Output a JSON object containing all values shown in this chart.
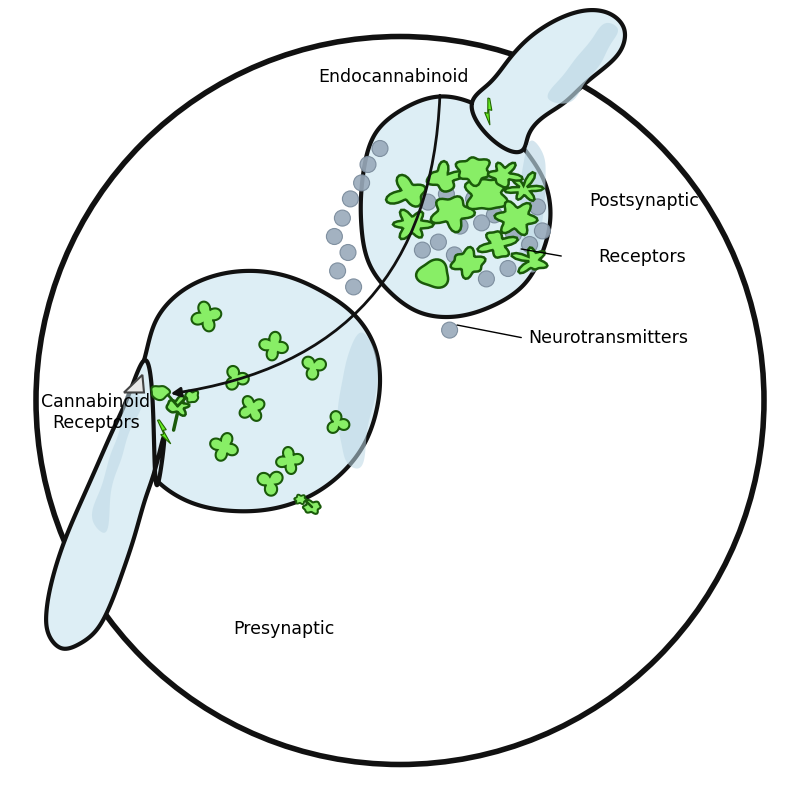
{
  "background_color": "#ffffff",
  "cell_fill_color": "#ddeef5",
  "cell_edge_color": "#111111",
  "green_fill": "#88ee66",
  "green_edge": "#1a5a0a",
  "gray_dot_color": "#99aabb",
  "arrow_color": "#111111",
  "lightning_color": "#66ee22",
  "text_endocannabinoid": "Endocannabinoid",
  "text_postsynaptic": "Postsynaptic",
  "text_presynaptic": "Presynaptic",
  "text_cannabinoid": "Cannabinoid\nReceptors",
  "text_receptors": "Receptors",
  "text_neurotransmitters": "Neurotransmitters",
  "figsize": [
    8.0,
    8.01
  ],
  "dpi": 100
}
